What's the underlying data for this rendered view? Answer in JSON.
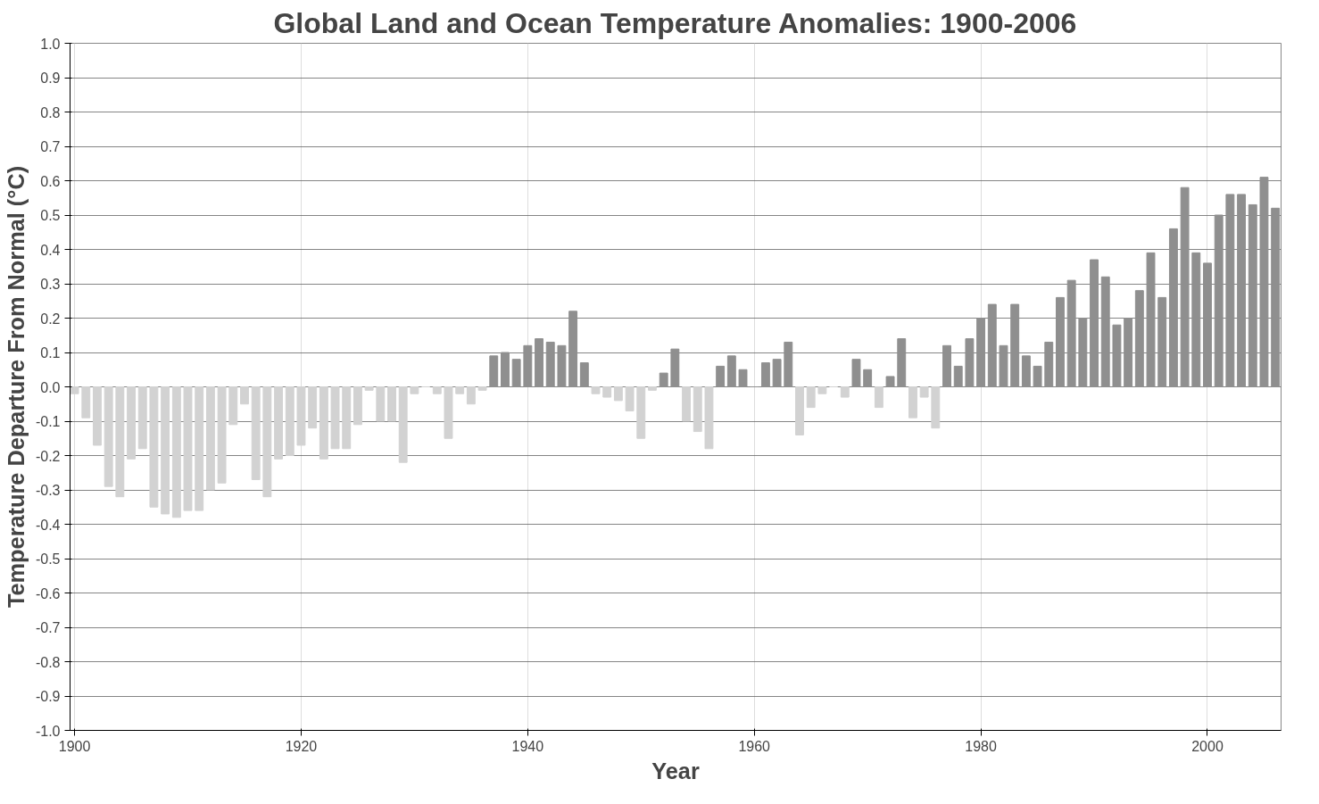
{
  "chart_data": {
    "type": "bar",
    "title": "Global Land and Ocean Temperature Anomalies: 1900-2006",
    "xlabel": "Year",
    "ylabel": "Temperature Departure From Normal (°C)",
    "x": [
      1900,
      1901,
      1902,
      1903,
      1904,
      1905,
      1906,
      1907,
      1908,
      1909,
      1910,
      1911,
      1912,
      1913,
      1914,
      1915,
      1916,
      1917,
      1918,
      1919,
      1920,
      1921,
      1922,
      1923,
      1924,
      1925,
      1926,
      1927,
      1928,
      1929,
      1930,
      1931,
      1932,
      1933,
      1934,
      1935,
      1936,
      1937,
      1938,
      1939,
      1940,
      1941,
      1942,
      1943,
      1944,
      1945,
      1946,
      1947,
      1948,
      1949,
      1950,
      1951,
      1952,
      1953,
      1954,
      1955,
      1956,
      1957,
      1958,
      1959,
      1960,
      1961,
      1962,
      1963,
      1964,
      1965,
      1966,
      1967,
      1968,
      1969,
      1970,
      1971,
      1972,
      1973,
      1974,
      1975,
      1976,
      1977,
      1978,
      1979,
      1980,
      1981,
      1982,
      1983,
      1984,
      1985,
      1986,
      1987,
      1988,
      1989,
      1990,
      1991,
      1992,
      1993,
      1994,
      1995,
      1996,
      1997,
      1998,
      1999,
      2000,
      2001,
      2002,
      2003,
      2004,
      2005,
      2006
    ],
    "values": [
      -0.02,
      -0.09,
      -0.17,
      -0.29,
      -0.32,
      -0.21,
      -0.18,
      -0.35,
      -0.37,
      -0.38,
      -0.36,
      -0.36,
      -0.3,
      -0.28,
      -0.11,
      -0.05,
      -0.27,
      -0.32,
      -0.21,
      -0.2,
      -0.17,
      -0.12,
      -0.21,
      -0.18,
      -0.18,
      -0.11,
      -0.01,
      -0.1,
      -0.1,
      -0.22,
      -0.02,
      0.0,
      -0.02,
      -0.15,
      -0.02,
      -0.05,
      -0.01,
      0.09,
      0.1,
      0.08,
      0.12,
      0.14,
      0.13,
      0.12,
      0.22,
      0.07,
      -0.02,
      -0.03,
      -0.04,
      -0.07,
      -0.15,
      -0.01,
      0.04,
      0.11,
      -0.1,
      -0.13,
      -0.18,
      0.06,
      0.09,
      0.05,
      0.0,
      0.07,
      0.08,
      0.13,
      -0.14,
      -0.06,
      -0.02,
      0.0,
      -0.03,
      0.08,
      0.05,
      -0.06,
      0.03,
      0.14,
      -0.09,
      -0.03,
      -0.12,
      0.12,
      0.06,
      0.14,
      0.2,
      0.24,
      0.12,
      0.24,
      0.09,
      0.06,
      0.13,
      0.26,
      0.31,
      0.2,
      0.37,
      0.32,
      0.18,
      0.2,
      0.28,
      0.39,
      0.26,
      0.46,
      0.58,
      0.39,
      0.36,
      0.5,
      0.56,
      0.56,
      0.53,
      0.61,
      0.52
    ],
    "colors": [
      "#d2d2d2",
      "#d2d2d2",
      "#d2d2d2",
      "#d2d2d2",
      "#d2d2d2",
      "#d2d2d2",
      "#d2d2d2",
      "#d2d2d2",
      "#d2d2d2",
      "#d2d2d2",
      "#d2d2d2",
      "#d2d2d2",
      "#d2d2d2",
      "#d2d2d2",
      "#d2d2d2",
      "#d2d2d2",
      "#d2d2d2",
      "#d2d2d2",
      "#d2d2d2",
      "#d2d2d2",
      "#d2d2d2",
      "#d2d2d2",
      "#d2d2d2",
      "#d2d2d2",
      "#d2d2d2",
      "#d2d2d2",
      "#d2d2d2",
      "#d2d2d2",
      "#d2d2d2",
      "#d2d2d2",
      "#d2d2d2",
      "#d2d2d2",
      "#d2d2d2",
      "#d2d2d2",
      "#d2d2d2",
      "#d2d2d2",
      "#d2d2d2",
      "#8f8f8f",
      "#8f8f8f",
      "#8f8f8f",
      "#8f8f8f",
      "#8f8f8f",
      "#8f8f8f",
      "#8f8f8f",
      "#8f8f8f",
      "#8f8f8f",
      "#d2d2d2",
      "#d2d2d2",
      "#d2d2d2",
      "#d2d2d2",
      "#d2d2d2",
      "#d2d2d2",
      "#8f8f8f",
      "#8f8f8f",
      "#d2d2d2",
      "#d2d2d2",
      "#d2d2d2",
      "#8f8f8f",
      "#8f8f8f",
      "#8f8f8f",
      "#8f8f8f",
      "#8f8f8f",
      "#8f8f8f",
      "#8f8f8f",
      "#d2d2d2",
      "#d2d2d2",
      "#d2d2d2",
      "#d2d2d2",
      "#d2d2d2",
      "#8f8f8f",
      "#8f8f8f",
      "#d2d2d2",
      "#8f8f8f",
      "#8f8f8f",
      "#d2d2d2",
      "#d2d2d2",
      "#d2d2d2",
      "#8f8f8f",
      "#8f8f8f",
      "#8f8f8f",
      "#8f8f8f",
      "#8f8f8f",
      "#8f8f8f",
      "#8f8f8f",
      "#8f8f8f",
      "#8f8f8f",
      "#8f8f8f",
      "#8f8f8f",
      "#8f8f8f",
      "#8f8f8f",
      "#8f8f8f",
      "#8f8f8f",
      "#8f8f8f",
      "#8f8f8f",
      "#8f8f8f",
      "#8f8f8f",
      "#8f8f8f",
      "#8f8f8f",
      "#8f8f8f",
      "#8f8f8f",
      "#8f8f8f",
      "#8f8f8f",
      "#8f8f8f",
      "#8f8f8f",
      "#8f8f8f",
      "#8f8f8f",
      "#8f8f8f"
    ],
    "xlim": [
      1899.6,
      2006.5
    ],
    "xticks": [
      1900,
      1920,
      1940,
      1960,
      1980,
      2000
    ],
    "ylim": [
      -1.0,
      1.0
    ],
    "yticks": [
      {
        "value": -1.0,
        "label": "-1.0"
      },
      {
        "value": -0.9,
        "label": "-0.9"
      },
      {
        "value": -0.8,
        "label": "-0.8"
      },
      {
        "value": -0.7,
        "label": "-0.7"
      },
      {
        "value": -0.6,
        "label": "-0.6"
      },
      {
        "value": -0.5,
        "label": "-0.5"
      },
      {
        "value": -0.4,
        "label": "-0.4"
      },
      {
        "value": -0.3,
        "label": "-0.3"
      },
      {
        "value": -0.2,
        "label": "-0.2"
      },
      {
        "value": -0.1,
        "label": "-0.1"
      },
      {
        "value": 0.0,
        "label": "0.0"
      },
      {
        "value": 0.1,
        "label": "0.1"
      },
      {
        "value": 0.2,
        "label": "0.2"
      },
      {
        "value": 0.3,
        "label": "0.3"
      },
      {
        "value": 0.4,
        "label": "0.4"
      },
      {
        "value": 0.5,
        "label": "0.5"
      },
      {
        "value": 0.6,
        "label": "0.6"
      },
      {
        "value": 0.7,
        "label": "0.7"
      },
      {
        "value": 0.8,
        "label": "0.8"
      },
      {
        "value": 0.9,
        "label": "0.9"
      },
      {
        "value": 1.0,
        "label": "1.0"
      }
    ],
    "grid": true
  }
}
